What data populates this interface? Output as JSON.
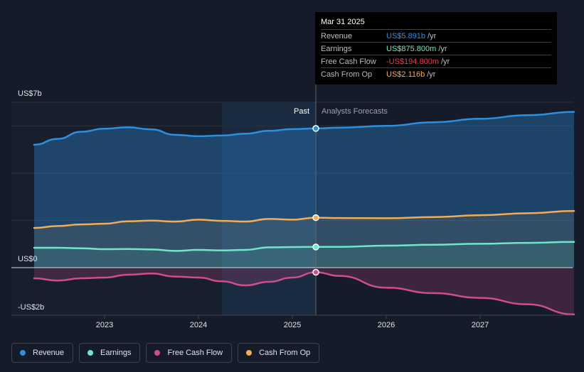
{
  "tooltip": {
    "date": "Mar 31 2025",
    "rows": [
      {
        "name": "Revenue",
        "value": "US$5.891b",
        "unit": "/yr",
        "color": "#2d8fe0"
      },
      {
        "name": "Earnings",
        "value": "US$875.800m",
        "unit": "/yr",
        "color": "#6ee7c8"
      },
      {
        "name": "Free Cash Flow",
        "value": "-US$194.800m",
        "unit": "/yr",
        "color": "#e8414f"
      },
      {
        "name": "Cash From Op",
        "value": "US$2.116b",
        "unit": "/yr",
        "color": "#f0ad55"
      }
    ]
  },
  "legend": [
    {
      "label": "Revenue",
      "color": "#2d8fe0"
    },
    {
      "label": "Earnings",
      "color": "#6ee7c8"
    },
    {
      "label": "Free Cash Flow",
      "color": "#cf4d8a"
    },
    {
      "label": "Cash From Op",
      "color": "#f0ad55"
    }
  ],
  "chart_data": {
    "type": "line",
    "y_axis_labels": [
      "US$7b",
      "US$0",
      "-US$2b"
    ],
    "ylim": [
      -2,
      7
    ],
    "x_ticks": [
      "2023",
      "2024",
      "2025",
      "2026",
      "2027"
    ],
    "region_labels": {
      "past": "Past",
      "forecast": "Analysts Forecasts"
    },
    "divider_date": 2025.25,
    "highlight_start": 2024.25,
    "x_range": [
      2022.25,
      2028.0
    ],
    "series": [
      {
        "name": "Revenue",
        "color": "#2d8fe0",
        "x": [
          2022.25,
          2022.5,
          2022.75,
          2023.0,
          2023.25,
          2023.5,
          2023.75,
          2024.0,
          2024.25,
          2024.5,
          2024.75,
          2025.0,
          2025.25,
          2025.5,
          2026.0,
          2026.5,
          2027.0,
          2027.5,
          2028.0
        ],
        "values": [
          5.2,
          5.45,
          5.75,
          5.88,
          5.94,
          5.85,
          5.62,
          5.56,
          5.59,
          5.67,
          5.79,
          5.86,
          5.891,
          5.92,
          6.0,
          6.15,
          6.3,
          6.45,
          6.59
        ]
      },
      {
        "name": "Cash From Op",
        "color": "#f0ad55",
        "x": [
          2022.25,
          2022.5,
          2022.75,
          2023.0,
          2023.25,
          2023.5,
          2023.75,
          2024.0,
          2024.25,
          2024.5,
          2024.75,
          2025.0,
          2025.25,
          2025.5,
          2026.0,
          2026.5,
          2027.0,
          2027.5,
          2028.0
        ],
        "values": [
          1.68,
          1.76,
          1.83,
          1.86,
          1.96,
          1.99,
          1.95,
          2.03,
          1.98,
          1.95,
          2.06,
          2.03,
          2.116,
          2.1,
          2.09,
          2.14,
          2.22,
          2.3,
          2.4
        ]
      },
      {
        "name": "Earnings",
        "color": "#6ee7c8",
        "x": [
          2022.25,
          2022.5,
          2022.75,
          2023.0,
          2023.25,
          2023.5,
          2023.75,
          2024.0,
          2024.25,
          2024.5,
          2024.75,
          2025.0,
          2025.25,
          2025.5,
          2026.0,
          2026.5,
          2027.0,
          2027.5,
          2028.0
        ],
        "values": [
          0.84,
          0.84,
          0.82,
          0.78,
          0.79,
          0.77,
          0.71,
          0.75,
          0.73,
          0.75,
          0.86,
          0.87,
          0.876,
          0.88,
          0.93,
          0.97,
          1.01,
          1.05,
          1.09
        ]
      },
      {
        "name": "Free Cash Flow",
        "color": "#cf4d8a",
        "x": [
          2022.25,
          2022.5,
          2022.75,
          2023.0,
          2023.25,
          2023.5,
          2023.75,
          2024.0,
          2024.25,
          2024.5,
          2024.75,
          2025.0,
          2025.25,
          2025.5,
          2026.0,
          2026.5,
          2027.0,
          2027.5,
          2028.0
        ],
        "values": [
          -0.45,
          -0.55,
          -0.45,
          -0.42,
          -0.3,
          -0.25,
          -0.38,
          -0.42,
          -0.58,
          -0.75,
          -0.6,
          -0.42,
          -0.195,
          -0.35,
          -0.85,
          -1.08,
          -1.28,
          -1.55,
          -1.98
        ]
      }
    ]
  }
}
